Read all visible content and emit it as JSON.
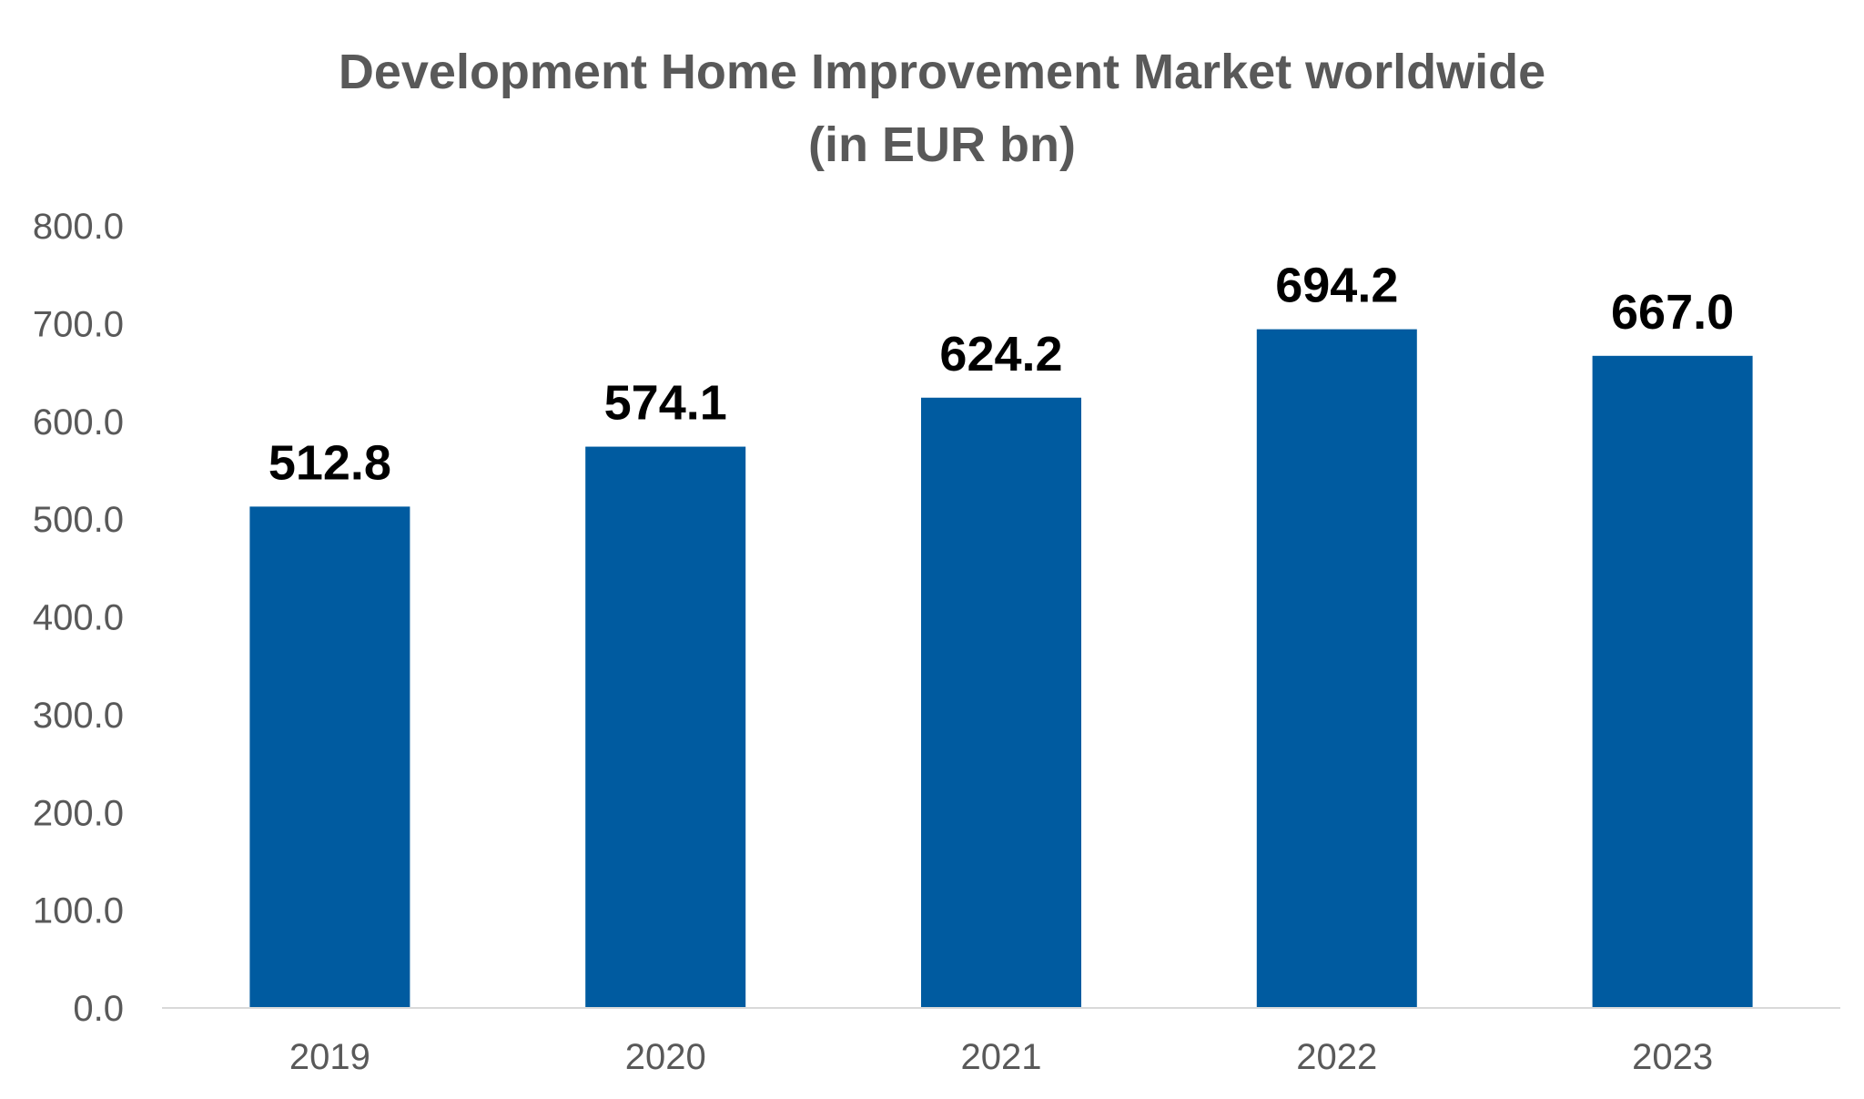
{
  "chart_data": {
    "type": "bar",
    "title": "Development Home Improvement Market worldwide",
    "subtitle": "(in EUR bn)",
    "categories": [
      "2019",
      "2020",
      "2021",
      "2022",
      "2023"
    ],
    "values": [
      512.8,
      574.1,
      624.2,
      694.2,
      667.0
    ],
    "data_labels": [
      "512.8",
      "574.1",
      "624.2",
      "694.2",
      "667.0"
    ],
    "y_ticks": [
      "0.0",
      "100.0",
      "200.0",
      "300.0",
      "400.0",
      "500.0",
      "600.0",
      "700.0",
      "800.0"
    ],
    "ylim": [
      0,
      800
    ],
    "xlabel": "",
    "ylabel": "",
    "grid": false,
    "legend": "none",
    "bar_color": "#005BA0",
    "title_color": "#595959",
    "tick_color": "#595959",
    "label_color": "#000000",
    "axis_color": "#D9D9D9"
  }
}
